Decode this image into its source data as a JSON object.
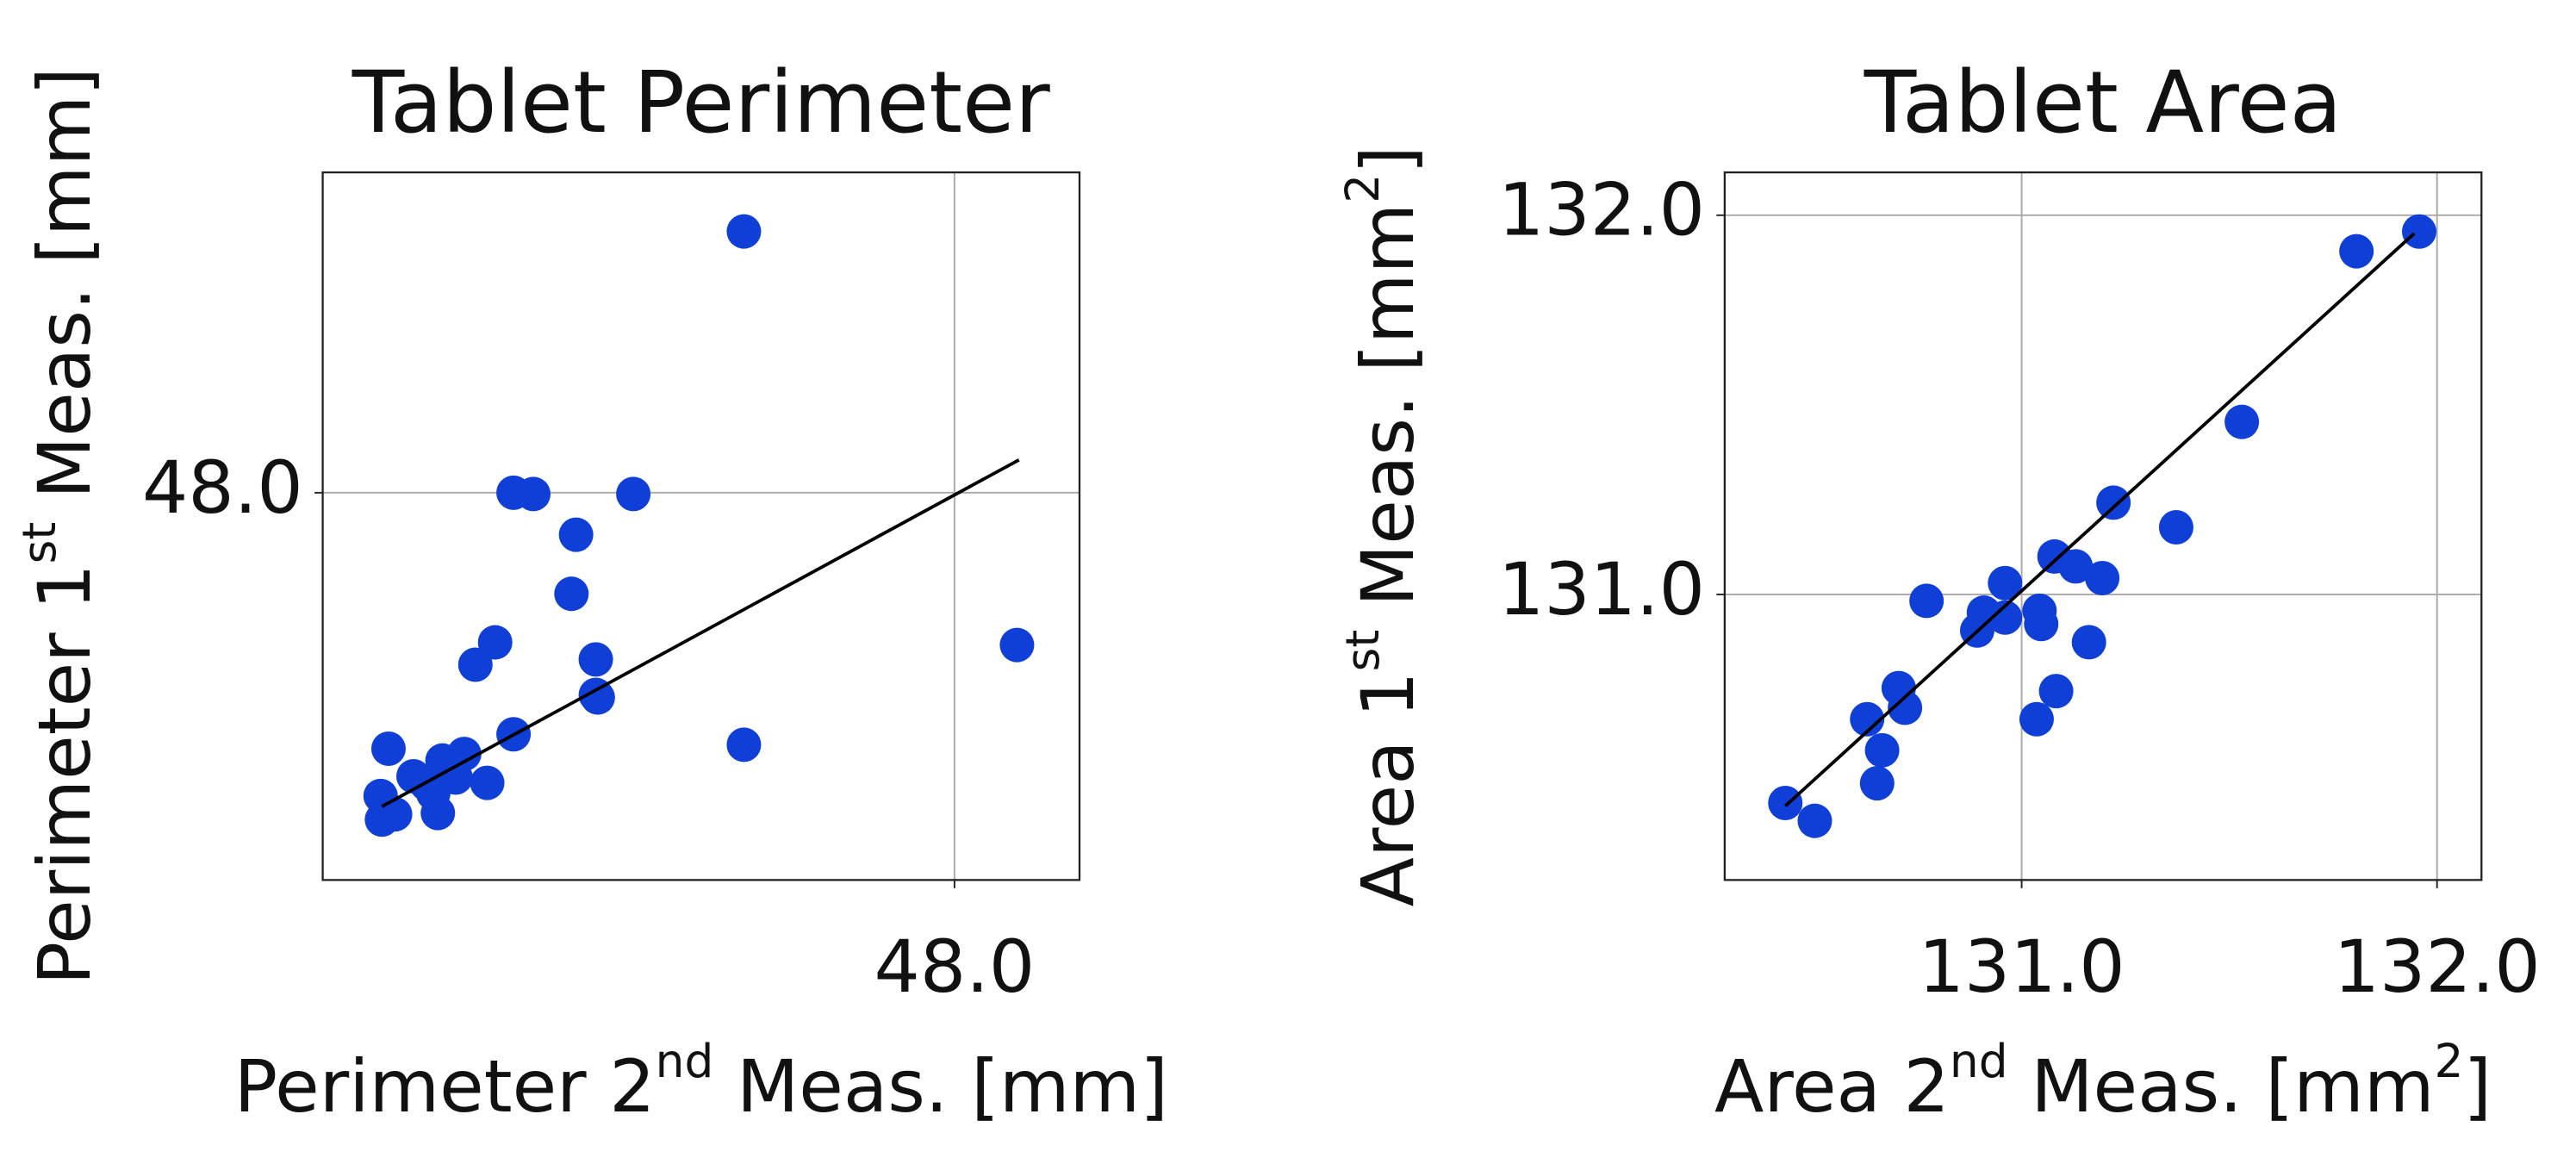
{
  "chart_data": [
    {
      "type": "scatter",
      "title": "Tablet Perimeter",
      "xlabel": [
        "Perimeter 2",
        "nd",
        " Meas. [mm]"
      ],
      "ylabel": [
        "Perimeter 1",
        "st",
        " Meas. [mm]"
      ],
      "xlim": [
        47.52,
        48.095
      ],
      "ylim": [
        47.705,
        48.244
      ],
      "xticks": [
        {
          "value": 48.0,
          "label": "48.0"
        }
      ],
      "yticks": [
        {
          "value": 48.0,
          "label": "48.0"
        }
      ],
      "grid": true,
      "series": [
        {
          "color": "#0f3fd6",
          "x": [
            47.84,
            47.665,
            47.68,
            47.756,
            47.7125,
            47.709,
            47.651,
            47.636,
            47.7275,
            47.7275,
            47.729,
            48.0475,
            47.84,
            47.665,
            47.57,
            47.564,
            47.565,
            47.575,
            47.589,
            47.6075,
            47.611,
            47.6275,
            47.621,
            47.645,
            47.604,
            47.599
          ],
          "values": [
            48.199,
            48.0,
            47.999,
            47.999,
            47.968,
            47.923,
            47.886,
            47.869,
            47.873,
            47.846,
            47.844,
            47.884,
            47.808,
            47.816,
            47.805,
            47.769,
            47.751,
            47.755,
            47.784,
            47.756,
            47.796,
            47.801,
            47.783,
            47.779,
            47.771,
            47.778
          ]
        }
      ],
      "line": {
        "color": "#000000",
        "x": [
          47.565,
          48.049
        ],
        "values": [
          47.761,
          48.025
        ]
      }
    },
    {
      "type": "scatter",
      "title": "Tablet Area",
      "xlabel": [
        "Area 2",
        "nd",
        " Meas. [mm",
        "2",
        "]"
      ],
      "ylabel": [
        "Area 1",
        "st",
        " Meas. [mm",
        "2",
        "]"
      ],
      "xlim": [
        130.285,
        132.107
      ],
      "ylim": [
        130.247,
        132.113
      ],
      "xticks": [
        {
          "value": 131.0,
          "label": "131.0"
        },
        {
          "value": 132.0,
          "label": "132.0"
        }
      ],
      "yticks": [
        {
          "value": 131.0,
          "label": "131.0"
        },
        {
          "value": 132.0,
          "label": "132.0"
        }
      ],
      "grid": true,
      "series": [
        {
          "color": "#0f3fd6",
          "x": [
            130.431,
            130.502,
            130.628,
            130.664,
            130.652,
            130.704,
            130.719,
            130.771,
            130.893,
            130.909,
            130.96,
            130.96,
            131.043,
            131.047,
            131.079,
            131.13,
            131.194,
            131.221,
            131.162,
            131.083,
            131.036,
            131.372,
            131.53,
            131.806,
            131.957
          ],
          "values": [
            130.45,
            130.403,
            130.671,
            130.589,
            130.502,
            130.753,
            130.701,
            130.983,
            130.905,
            130.952,
            131.03,
            130.939,
            130.957,
            130.922,
            131.1,
            131.074,
            131.043,
            131.242,
            130.874,
            130.745,
            130.671,
            131.177,
            131.455,
            131.905,
            131.957
          ]
        }
      ],
      "line": {
        "color": "#000000",
        "x": [
          130.431,
          131.945
        ],
        "values": [
          130.442,
          131.952
        ]
      }
    }
  ]
}
